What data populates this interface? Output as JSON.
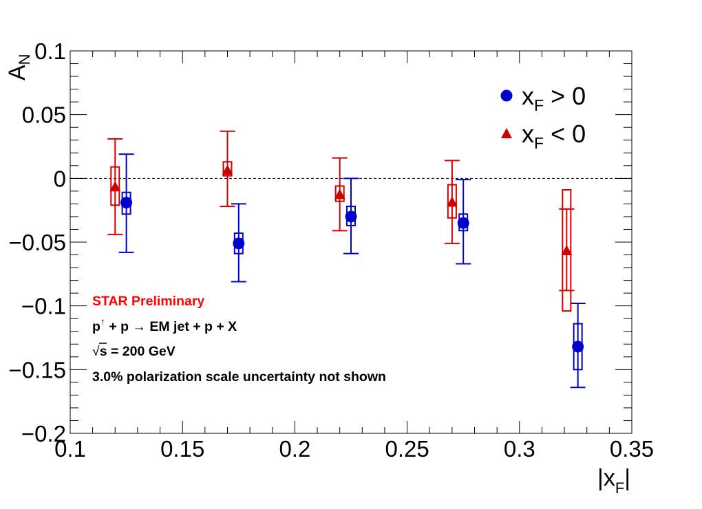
{
  "chart_data": {
    "type": "scatter",
    "title": "",
    "xlabel": "|x",
    "xlabel_sub": "F",
    "xlabel_end": "|",
    "ylabel": "A",
    "ylabel_sub": "N",
    "xlim": [
      0.1,
      0.35
    ],
    "ylim": [
      -0.2,
      0.1
    ],
    "x_ticks": [
      "0.1",
      "0.15",
      "0.2",
      "0.25",
      "0.3",
      "0.35"
    ],
    "y_ticks": [
      "−0.2",
      "−0.15",
      "−0.1",
      "−0.05",
      "0",
      "0.05",
      "0.1"
    ],
    "reference_line": 0,
    "grid": false,
    "legend_position": "top-right",
    "series": [
      {
        "name": "x_F > 0",
        "legend_main": "x",
        "legend_sub": "F",
        "legend_rest": " > 0",
        "marker": "circle",
        "color": "#0000cc",
        "points": [
          {
            "x": 0.125,
            "y": -0.019,
            "stat_lo": -0.058,
            "stat_hi": 0.019,
            "sys_lo": -0.028,
            "sys_hi": -0.011
          },
          {
            "x": 0.175,
            "y": -0.051,
            "stat_lo": -0.081,
            "stat_hi": -0.02,
            "sys_lo": -0.059,
            "sys_hi": -0.043
          },
          {
            "x": 0.225,
            "y": -0.03,
            "stat_lo": -0.059,
            "stat_hi": 0.0,
            "sys_lo": -0.037,
            "sys_hi": -0.022
          },
          {
            "x": 0.275,
            "y": -0.035,
            "stat_lo": -0.067,
            "stat_hi": -0.001,
            "sys_lo": -0.041,
            "sys_hi": -0.028
          },
          {
            "x": 0.326,
            "y": -0.132,
            "stat_lo": -0.164,
            "stat_hi": -0.098,
            "sys_lo": -0.15,
            "sys_hi": -0.114
          }
        ]
      },
      {
        "name": "x_F < 0",
        "legend_main": "x",
        "legend_sub": "F",
        "legend_rest": " < 0",
        "marker": "triangle",
        "color": "#cc0000",
        "points": [
          {
            "x": 0.12,
            "y": -0.007,
            "stat_lo": -0.044,
            "stat_hi": 0.031,
            "sys_lo": -0.021,
            "sys_hi": 0.009
          },
          {
            "x": 0.17,
            "y": 0.006,
            "stat_lo": -0.022,
            "stat_hi": 0.037,
            "sys_lo": 0.002,
            "sys_hi": 0.013
          },
          {
            "x": 0.22,
            "y": -0.013,
            "stat_lo": -0.041,
            "stat_hi": 0.016,
            "sys_lo": -0.018,
            "sys_hi": -0.006
          },
          {
            "x": 0.27,
            "y": -0.019,
            "stat_lo": -0.051,
            "stat_hi": 0.014,
            "sys_lo": -0.031,
            "sys_hi": -0.005
          },
          {
            "x": 0.321,
            "y": -0.057,
            "stat_lo": -0.088,
            "stat_hi": -0.024,
            "sys_lo": -0.104,
            "sys_hi": -0.009
          }
        ]
      }
    ],
    "annotations": {
      "prelim": "STAR Preliminary",
      "reaction_p": "p",
      "reaction_arrow_up": "↑",
      "reaction_rest": " + p  → EM jet + p + X",
      "sqrt_sym": "√",
      "energy_rest": "s = 200 GeV",
      "pol_note": "3.0% polarization scale uncertainty not shown"
    }
  }
}
